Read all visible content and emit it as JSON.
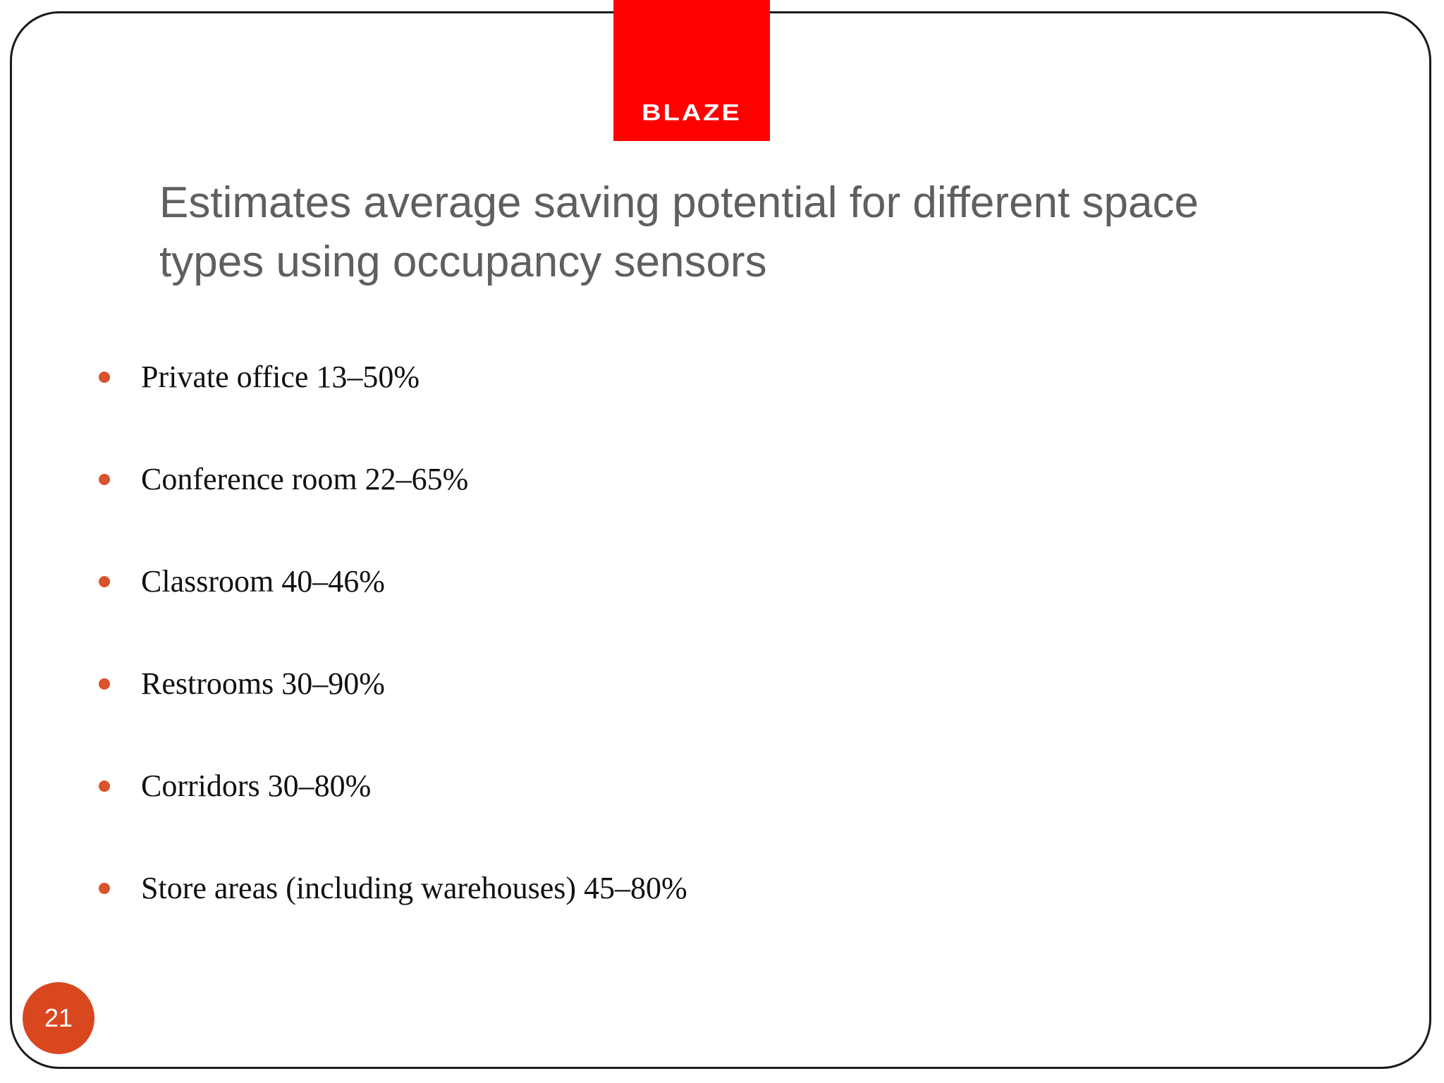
{
  "logo": {
    "text": "BLAZE",
    "background_color": "#ff0000"
  },
  "title": {
    "line1": "Estimates average saving potential for different space",
    "line2": "types using occupancy sensors"
  },
  "bullets": [
    {
      "text": "Private office 13–50%"
    },
    {
      "text": "Conference room 22–65%"
    },
    {
      "text": "Classroom 40–46%"
    },
    {
      "text": "Restrooms 30–90%"
    },
    {
      "text": "Corridors 30–80%"
    },
    {
      "text": "Store areas (including warehouses) 45–80%"
    }
  ],
  "page_number": "21",
  "colors": {
    "bullet": "#d9532c",
    "badge": "#d9471f",
    "title": "#5f5f5f"
  }
}
